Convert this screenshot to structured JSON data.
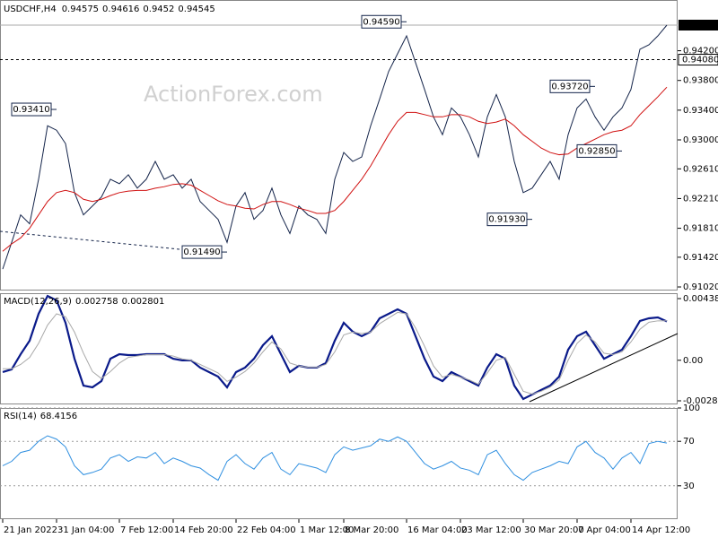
{
  "chart_data": [
    {
      "type": "line",
      "title": "USDCHF,H4",
      "ohlc": [
        0.94575,
        0.94616,
        0.9452,
        0.94545
      ],
      "watermark": "ActionForex.com",
      "categories": [
        "21 Jan 2022",
        null,
        null,
        null,
        null,
        null,
        "31 Jan 04:00",
        null,
        null,
        null,
        null,
        null,
        null,
        "7 Feb 12:00",
        null,
        null,
        null,
        null,
        null,
        "14 Feb 20:00",
        null,
        null,
        null,
        null,
        null,
        null,
        "22 Feb 04:00",
        null,
        null,
        null,
        null,
        null,
        null,
        "1 Mar 12:00",
        null,
        null,
        null,
        null,
        "8 Mar 20:00",
        null,
        null,
        null,
        null,
        null,
        null,
        "16 Mar 04:00",
        null,
        null,
        null,
        null,
        null,
        "23 Mar 12:00",
        null,
        null,
        null,
        null,
        null,
        null,
        "30 Mar 20:00",
        null,
        null,
        null,
        null,
        null,
        "7 Apr 04:00",
        null,
        null,
        null,
        null,
        null,
        "14 Apr 12:00",
        null,
        null,
        null,
        null
      ],
      "series": [
        {
          "color": "#14244a",
          "values": [
            0.9126,
            0.9162,
            0.9199,
            0.9187,
            0.9247,
            0.9319,
            0.9313,
            0.9295,
            0.9229,
            0.9199,
            0.9211,
            0.9223,
            0.9247,
            0.9241,
            0.9253,
            0.9235,
            0.9247,
            0.9271,
            0.9247,
            0.9253,
            0.9235,
            0.9247,
            0.9217,
            0.9205,
            0.9193,
            0.9162,
            0.9211,
            0.9229,
            0.9193,
            0.9205,
            0.9235,
            0.9199,
            0.9174,
            0.9211,
            0.9199,
            0.9193,
            0.9174,
            0.9247,
            0.9283,
            0.9271,
            0.9277,
            0.9319,
            0.9355,
            0.9392,
            0.9416,
            0.944,
            0.9404,
            0.9368,
            0.9331,
            0.9307,
            0.9343,
            0.9331,
            0.9307,
            0.9277,
            0.9331,
            0.9361,
            0.9331,
            0.9271,
            0.9229,
            0.9235,
            0.9253,
            0.9271,
            0.9247,
            0.9307,
            0.9343,
            0.9355,
            0.9331,
            0.9313,
            0.9331,
            0.9343,
            0.9368,
            0.9422,
            0.9428,
            0.944,
            0.94545
          ]
        },
        {
          "color": "#d01010",
          "values": [
            0.915,
            0.916,
            0.9168,
            0.9181,
            0.9199,
            0.9217,
            0.9229,
            0.9232,
            0.9229,
            0.922,
            0.9217,
            0.922,
            0.9225,
            0.9229,
            0.9231,
            0.9232,
            0.9232,
            0.9235,
            0.9237,
            0.924,
            0.9241,
            0.9239,
            0.9232,
            0.9225,
            0.9218,
            0.9213,
            0.9211,
            0.9208,
            0.9207,
            0.9213,
            0.9217,
            0.9217,
            0.9213,
            0.9208,
            0.9205,
            0.9201,
            0.9201,
            0.9205,
            0.9217,
            0.9232,
            0.9247,
            0.9265,
            0.9286,
            0.9307,
            0.9325,
            0.9337,
            0.9337,
            0.9334,
            0.9331,
            0.9331,
            0.9334,
            0.9334,
            0.9331,
            0.9325,
            0.9322,
            0.9324,
            0.9328,
            0.9319,
            0.9307,
            0.9298,
            0.9289,
            0.9283,
            0.928,
            0.9281,
            0.9289,
            0.9295,
            0.9301,
            0.9307,
            0.9311,
            0.9313,
            0.9319,
            0.9334,
            0.9346,
            0.9358,
            0.9371
          ]
        }
      ],
      "ylim": [
        0.90984,
        0.94883
      ],
      "yticks": [
        {
          "value": 0.942,
          "label": "0.94200"
        },
        {
          "value": 0.938,
          "label": "0.93800"
        },
        {
          "value": 0.934,
          "label": "0.93400"
        },
        {
          "value": 0.93,
          "label": "0.93000"
        },
        {
          "value": 0.9261,
          "label": "0.92610"
        },
        {
          "value": 0.9221,
          "label": "0.92210"
        },
        {
          "value": 0.9181,
          "label": "0.91810"
        },
        {
          "value": 0.9142,
          "label": "0.91420"
        },
        {
          "value": 0.9102,
          "label": "0.91020"
        }
      ],
      "levels": [
        {
          "value": 0.9408,
          "label": "0.94080"
        }
      ],
      "annotations": [
        {
          "x": 45,
          "value": 0.9459,
          "label": "0.94590"
        },
        {
          "x": 6,
          "value": 0.9341,
          "label": "0.93410"
        },
        {
          "x": 66,
          "value": 0.9372,
          "label": "0.93720"
        },
        {
          "x": 69,
          "value": 0.9285,
          "label": "0.92850"
        },
        {
          "x": 59,
          "value": 0.9193,
          "label": "0.91930"
        },
        {
          "x": 25,
          "value": 0.9149,
          "label": "0.91490"
        }
      ]
    },
    {
      "type": "line",
      "title": "MACD(12,26,9)",
      "series": [
        {
          "color": "#0a1a8a",
          "values": [
            -0.00084,
            -0.00065,
            0.00043,
            0.00139,
            0.0033,
            0.00457,
            0.00426,
            0.00266,
            0.00011,
            -0.0018,
            -0.00192,
            -0.00148,
            0.00011,
            0.00043,
            0.00037,
            0.00037,
            0.00043,
            0.00043,
            0.00043,
            0.00011,
            -1e-05,
            -1e-05,
            -0.00052,
            -0.00084,
            -0.00116,
            -0.00192,
            -0.00084,
            -0.00052,
            0.00011,
            0.00107,
            0.00171,
            0.00043,
            -0.00084,
            -0.00039,
            -0.00052,
            -0.00052,
            -0.0002,
            0.00139,
            0.00266,
            0.00203,
            0.00171,
            0.00203,
            0.00298,
            0.0033,
            0.00362,
            0.0033,
            0.00171,
            0.00011,
            -0.00116,
            -0.00148,
            -0.00084,
            -0.00116,
            -0.00148,
            -0.0018,
            -0.00052,
            0.00043,
            0.00011,
            -0.0018,
            -0.00275,
            -0.00243,
            -0.00211,
            -0.0018,
            -0.00116,
            0.00075,
            0.00171,
            0.00203,
            0.00107,
            0.00011,
            0.00043,
            0.00075,
            0.00171,
            0.00279,
            0.00298,
            0.00304,
            0.002758
          ]
        },
        {
          "color": "#a8a8a8",
          "values": [
            -0.0006,
            -0.0006,
            -0.0003,
            0.0002,
            0.0012,
            0.0025,
            0.0033,
            0.0031,
            0.002,
            0.0005,
            -0.0008,
            -0.0013,
            -0.0008,
            -0.0002,
            0.0002,
            0.0003,
            0.0004,
            0.0004,
            0.0004,
            0.0003,
            0.0001,
            0.0,
            -0.0003,
            -0.0006,
            -0.0009,
            -0.0015,
            -0.0012,
            -0.0008,
            -0.0002,
            0.0006,
            0.0013,
            0.0008,
            -0.0002,
            -0.0004,
            -0.0005,
            -0.0005,
            -0.0003,
            0.0006,
            0.0018,
            0.002,
            0.0019,
            0.002,
            0.0026,
            0.003,
            0.0034,
            0.0033,
            0.0023,
            0.001,
            -0.0004,
            -0.0012,
            -0.001,
            -0.0012,
            -0.0014,
            -0.0017,
            -0.0009,
            0.0,
            0.0002,
            -0.001,
            -0.0022,
            -0.0024,
            -0.0022,
            -0.0019,
            -0.0014,
            0.0,
            0.0012,
            0.0018,
            0.0013,
            0.0005,
            0.0004,
            0.0006,
            0.0013,
            0.0022,
            0.0027,
            0.0028,
            0.002801
          ]
        }
      ],
      "ylim": [
        -0.003072,
        0.004763
      ],
      "yticks": [
        0.004381,
        {
          "value": 0,
          "label": "0.00"
        },
        -0.002881
      ]
    },
    {
      "type": "line",
      "title": "RSI(14)",
      "series": [
        {
          "color": "#2f8fe0",
          "values": [
            48,
            52,
            60,
            62,
            70,
            75,
            72,
            65,
            48,
            40,
            42,
            45,
            55,
            58,
            52,
            56,
            55,
            60,
            50,
            55,
            52,
            48,
            46,
            40,
            35,
            52,
            58,
            50,
            45,
            55,
            60,
            45,
            40,
            50,
            48,
            46,
            42,
            58,
            65,
            62,
            64,
            66,
            72,
            70,
            74,
            70,
            60,
            50,
            45,
            48,
            52,
            46,
            44,
            40,
            58,
            62,
            50,
            40,
            35,
            42,
            45,
            48,
            52,
            50,
            65,
            70,
            60,
            55,
            45,
            55,
            60,
            50,
            68,
            70,
            68.4156
          ]
        }
      ],
      "ylim": [
        0,
        100
      ],
      "yticks": [
        100,
        70,
        30
      ],
      "grid": true
    }
  ]
}
